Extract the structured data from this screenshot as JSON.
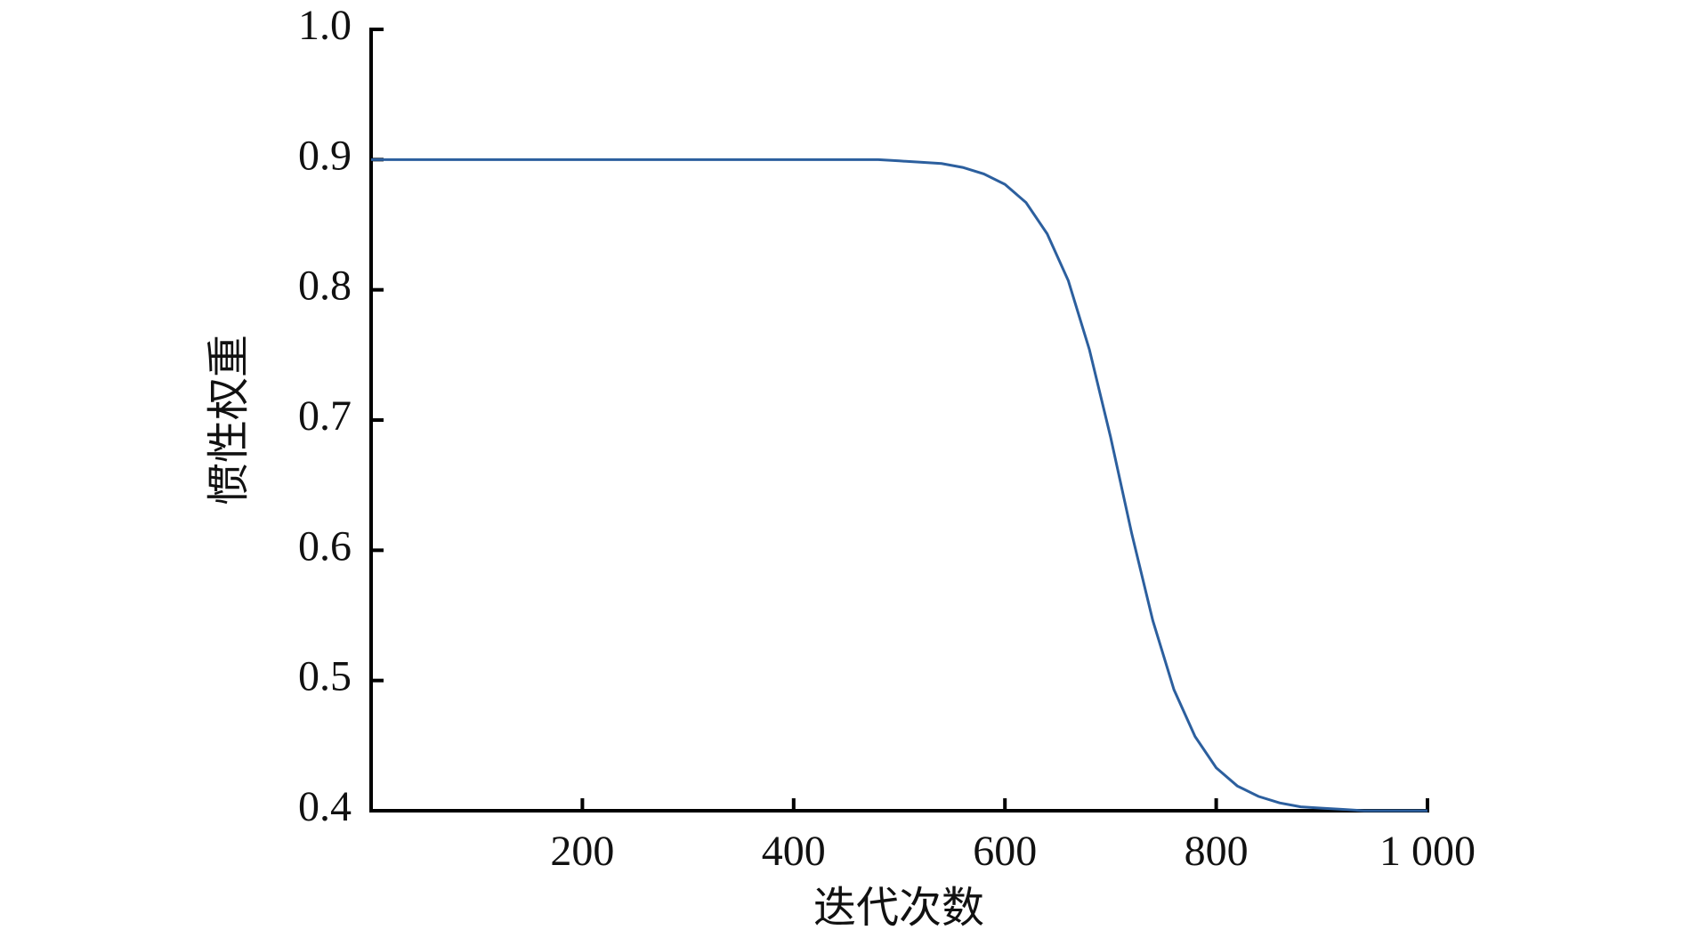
{
  "chart_data": {
    "type": "line",
    "xlabel": "迭代次数",
    "ylabel": "惯性权重",
    "x": [
      0,
      20,
      40,
      60,
      80,
      100,
      120,
      140,
      160,
      180,
      200,
      220,
      240,
      260,
      280,
      300,
      320,
      340,
      360,
      380,
      400,
      420,
      440,
      460,
      480,
      500,
      520,
      540,
      560,
      580,
      600,
      620,
      640,
      660,
      680,
      700,
      720,
      740,
      760,
      780,
      800,
      820,
      840,
      860,
      880,
      900,
      920,
      940,
      960,
      980,
      1000
    ],
    "series": [
      {
        "color": "#2c5f9e",
        "values": [
          0.9,
          0.9,
          0.9,
          0.9,
          0.9,
          0.9,
          0.9,
          0.9,
          0.9,
          0.9,
          0.9,
          0.9,
          0.9,
          0.9,
          0.9,
          0.9,
          0.9,
          0.9,
          0.9,
          0.9,
          0.9,
          0.9,
          0.9,
          0.9,
          0.9,
          0.899,
          0.898,
          0.897,
          0.894,
          0.889,
          0.881,
          0.867,
          0.843,
          0.807,
          0.754,
          0.687,
          0.613,
          0.546,
          0.493,
          0.457,
          0.433,
          0.419,
          0.411,
          0.406,
          0.403,
          0.402,
          0.401,
          0.4,
          0.4,
          0.4,
          0.4
        ]
      }
    ],
    "xlim": [
      0,
      1000
    ],
    "ylim": [
      0.4,
      1.0
    ],
    "xticks": [
      200,
      400,
      600,
      800,
      {
        "value": 1000,
        "label": "1 000"
      }
    ],
    "yticks": [
      0.4,
      0.5,
      0.6,
      0.7,
      0.8,
      0.9,
      {
        "value": 1.0,
        "label": "1.0"
      }
    ]
  }
}
